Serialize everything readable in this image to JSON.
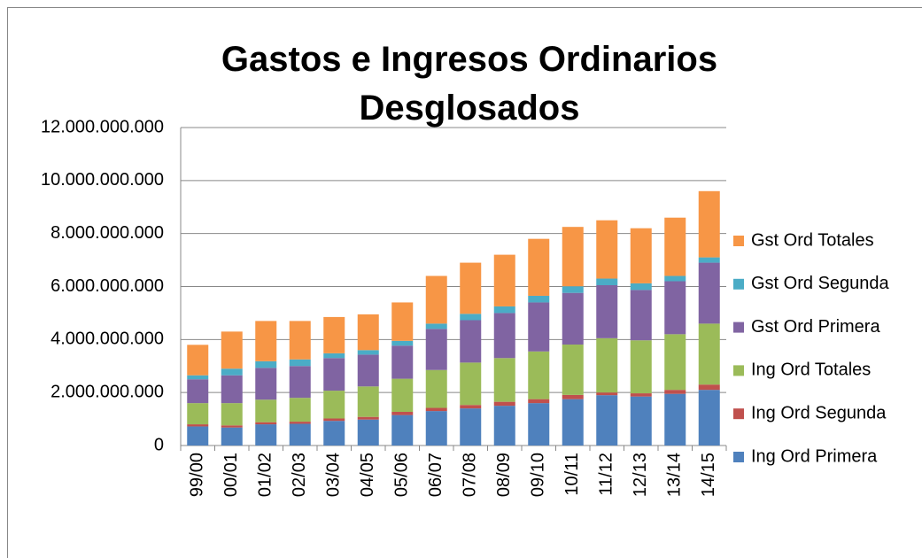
{
  "chart_data": {
    "type": "stacked_bar",
    "title": "Gastos e Ingresos Ordinarios Desglosados",
    "categories": [
      "99/00",
      "00/01",
      "01/02",
      "02/03",
      "03/04",
      "04/05",
      "05/06",
      "06/07",
      "07/08",
      "08/09",
      "09/10",
      "10/11",
      "11/12",
      "12/13",
      "13/14",
      "14/15"
    ],
    "series": [
      {
        "name": "Ing Ord Primera",
        "color": "#4f81bd",
        "values": [
          720000000,
          680000000,
          800000000,
          820000000,
          930000000,
          980000000,
          1150000000,
          1300000000,
          1400000000,
          1500000000,
          1600000000,
          1750000000,
          1900000000,
          1850000000,
          1950000000,
          2100000000
        ]
      },
      {
        "name": "Ing Ord Segunda",
        "color": "#c0504d",
        "values": [
          80000000,
          80000000,
          80000000,
          80000000,
          90000000,
          100000000,
          120000000,
          120000000,
          130000000,
          150000000,
          150000000,
          160000000,
          100000000,
          120000000,
          150000000,
          200000000
        ]
      },
      {
        "name": "Ing Ord Totales",
        "color": "#9bbb59",
        "values": [
          800000000,
          840000000,
          850000000,
          900000000,
          1050000000,
          1150000000,
          1250000000,
          1430000000,
          1600000000,
          1650000000,
          1800000000,
          1900000000,
          2050000000,
          2000000000,
          2100000000,
          2300000000
        ]
      },
      {
        "name": "Gst Ord Primera",
        "color": "#8064a2",
        "values": [
          900000000,
          1050000000,
          1200000000,
          1200000000,
          1230000000,
          1200000000,
          1250000000,
          1550000000,
          1600000000,
          1700000000,
          1850000000,
          1950000000,
          2000000000,
          1900000000,
          2000000000,
          2300000000
        ]
      },
      {
        "name": "Gst Ord Segunda",
        "color": "#4bacc6",
        "values": [
          150000000,
          250000000,
          250000000,
          250000000,
          180000000,
          170000000,
          180000000,
          200000000,
          240000000,
          250000000,
          250000000,
          250000000,
          250000000,
          250000000,
          200000000,
          200000000
        ]
      },
      {
        "name": "Gst Ord Totales",
        "color": "#f79646",
        "values": [
          1150000000,
          1400000000,
          1520000000,
          1450000000,
          1370000000,
          1350000000,
          1450000000,
          1800000000,
          1930000000,
          1950000000,
          2150000000,
          2240000000,
          2200000000,
          2080000000,
          2200000000,
          2500000000
        ]
      }
    ],
    "ylim": [
      0,
      12000000000
    ],
    "yticks": [
      0,
      {
        "value": 2000000000,
        "label": "2.000.000.000"
      },
      {
        "value": 4000000000,
        "label": "4.000.000.000"
      },
      {
        "value": 6000000000,
        "label": "6.000.000.000"
      },
      {
        "value": 8000000000,
        "label": "8.000.000.000"
      },
      {
        "value": 10000000000,
        "label": "10.000.000.000"
      },
      {
        "value": 12000000000,
        "label": "12.000.000.000"
      }
    ],
    "grid": true,
    "legend": "right"
  }
}
